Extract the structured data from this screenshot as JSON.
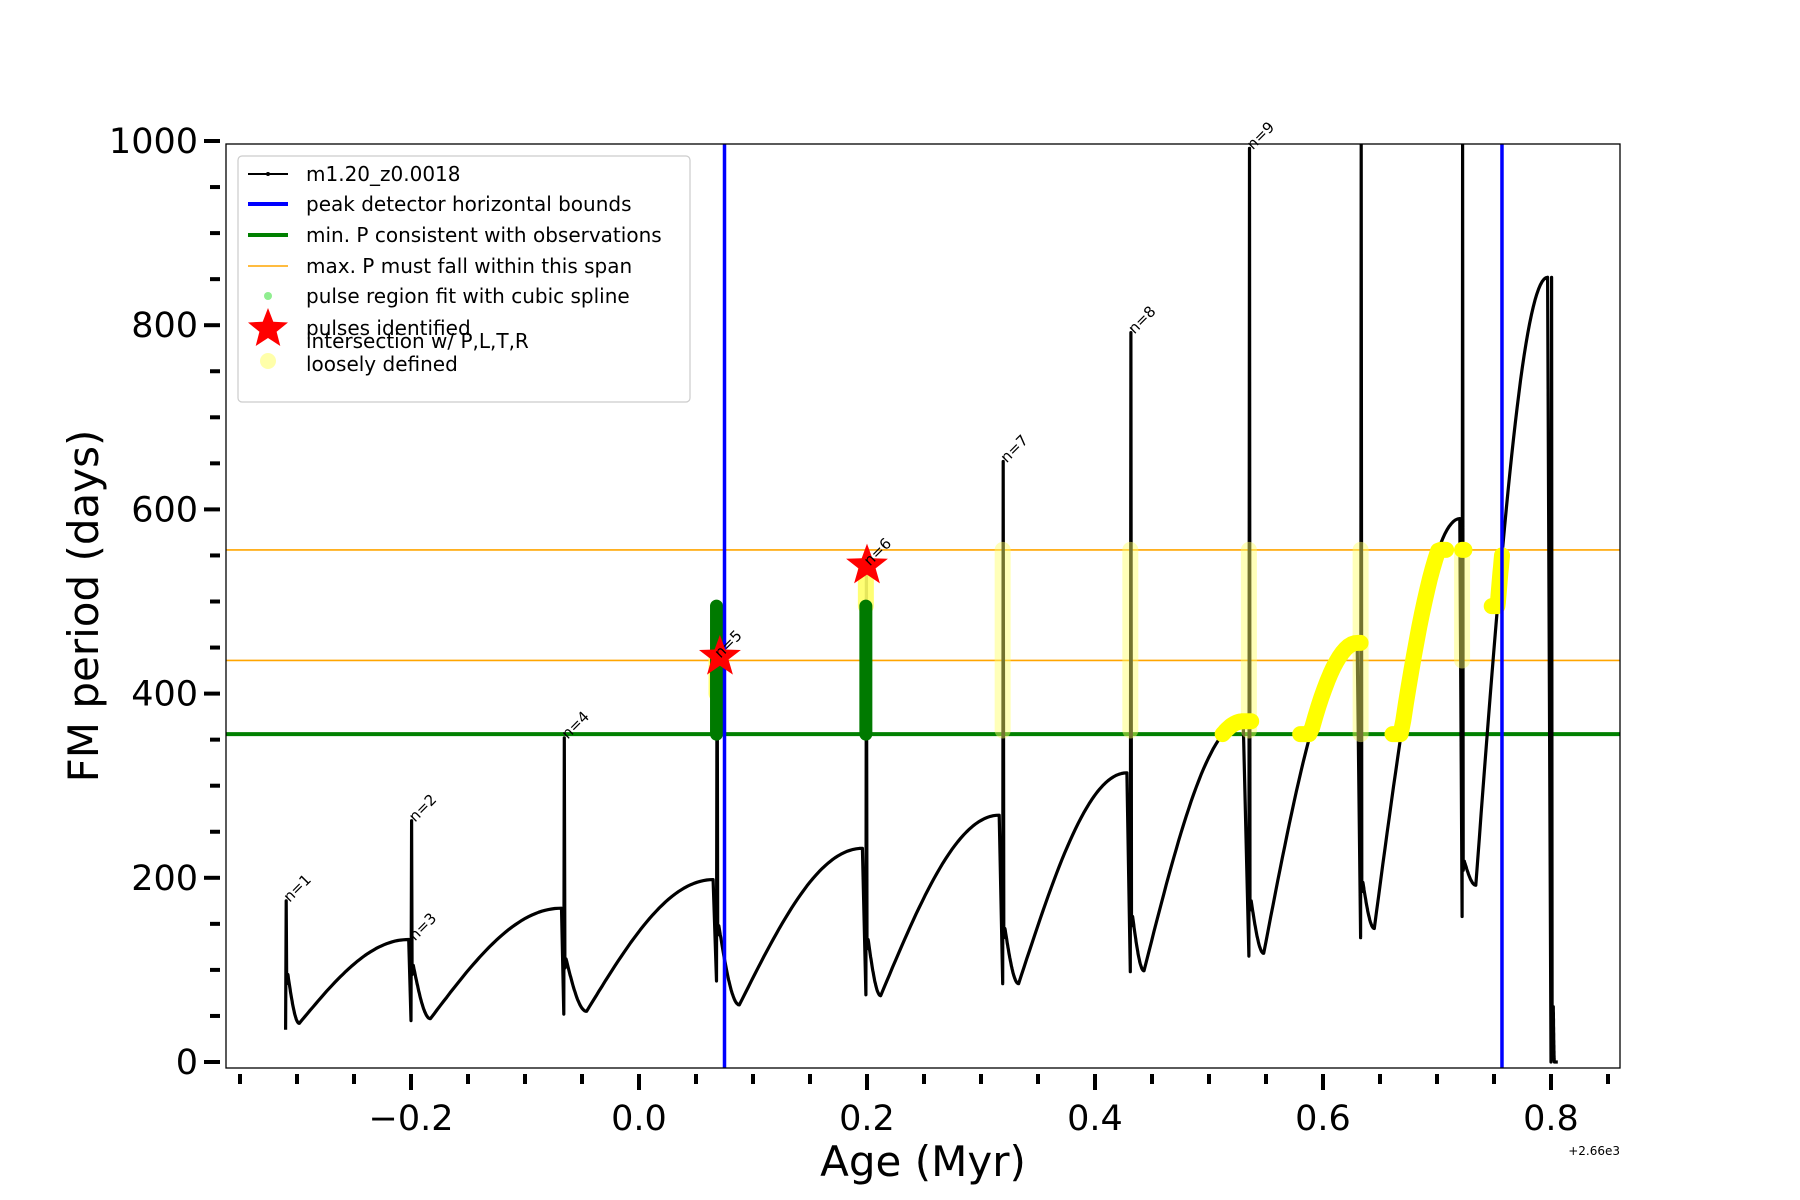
{
  "chart_data": {
    "type": "line",
    "title": "",
    "xlabel": "Age (Myr)",
    "ylabel": "FM period (days)",
    "x_offset_label": "+2.66e3",
    "xlim": [
      -0.362,
      0.86
    ],
    "ylim": [
      -5,
      1000
    ],
    "xticks": [
      -0.2,
      0.0,
      0.2,
      0.4,
      0.6,
      0.8
    ],
    "xtick_labels": [
      "−0.2",
      "0.0",
      "0.2",
      "0.4",
      "0.6",
      "0.8"
    ],
    "x_minor_step": 0.05,
    "yticks": [
      0,
      200,
      400,
      600,
      800,
      1000
    ],
    "ytick_labels": [
      "0",
      "200",
      "400",
      "600",
      "800",
      "1000"
    ],
    "y_minor_step": 50,
    "grid": false,
    "legend_position": "top-left",
    "legend": [
      {
        "label": "m1.20_z0.0018",
        "kind": "line-marker",
        "color": "#000000"
      },
      {
        "label": "peak detector horizontal bounds",
        "kind": "line",
        "color": "#0000ff"
      },
      {
        "label": "min. P consistent with observations",
        "kind": "line",
        "color": "#008000"
      },
      {
        "label": "max. P must fall within this span",
        "kind": "thin-line",
        "color": "#ffa500"
      },
      {
        "label": "pulse region fit with cubic spline",
        "kind": "dot",
        "color": "#90ee90"
      },
      {
        "label": "pulses identified",
        "kind": "star",
        "color": "#ff0000"
      },
      {
        "label": "intersection w/ P,L,T,R\nloosely defined",
        "kind": "dot",
        "color": "#ffffaa"
      }
    ],
    "series_main": {
      "name": "m1.20_z0.0018",
      "color": "#000000",
      "cycles": [
        {
          "pulse_x": -0.31,
          "spike": 175,
          "spike_low": 35,
          "trough_x": -0.298,
          "trough": 42,
          "end_x": -0.202,
          "end": 133
        },
        {
          "pulse_x": -0.2,
          "spike": 262,
          "spike_low": 45,
          "trough_x": -0.183,
          "trough": 47,
          "end_x": -0.068,
          "end": 167
        },
        {
          "pulse_x": -0.066,
          "spike": 352,
          "spike_low": 52,
          "trough_x": -0.046,
          "trough": 55,
          "end_x": 0.065,
          "end": 198
        },
        {
          "pulse_x": 0.068,
          "spike": 495,
          "spike_low": 88,
          "trough_x": 0.088,
          "trough": 62,
          "end_x": 0.196,
          "end": 232
        },
        {
          "pulse_x": 0.199,
          "spike": 540,
          "spike_low": 73,
          "trough_x": 0.212,
          "trough": 72,
          "end_x": 0.316,
          "end": 268
        },
        {
          "pulse_x": 0.319,
          "spike": 652,
          "spike_low": 85,
          "trough_x": 0.333,
          "trough": 85,
          "end_x": 0.428,
          "end": 314
        },
        {
          "pulse_x": 0.431,
          "spike": 792,
          "spike_low": 98,
          "trough_x": 0.443,
          "trough": 99,
          "end_x": 0.53,
          "end": 370
        },
        {
          "pulse_x": 0.535,
          "spike": 992,
          "spike_low": 115,
          "trough_x": 0.548,
          "trough": 118,
          "end_x": 0.63,
          "end": 455
        },
        {
          "pulse_x": 0.633,
          "spike": 1000,
          "spike_low": 135,
          "trough_x": 0.645,
          "trough": 145,
          "end_x": 0.72,
          "end": 590
        },
        {
          "pulse_x": 0.722,
          "spike": 1000,
          "spike_low": 158,
          "trough_x": 0.734,
          "trough": 192,
          "end_x": 0.797,
          "end": 852
        },
        {
          "pulse_x": 0.8,
          "spike": 852,
          "spike_low": 0,
          "trough_x": 0.803,
          "trough": 0,
          "end_x": 0.806,
          "end": 0
        }
      ]
    },
    "peak_detector_bounds_x": [
      0.075,
      0.757
    ],
    "min_P": 356,
    "max_P_span": [
      436,
      556
    ],
    "cubic_spline_regions": [
      {
        "x": 0.068,
        "y_range": [
          356,
          495
        ]
      },
      {
        "x": 0.199,
        "y_range": [
          356,
          495
        ]
      }
    ],
    "pulses_identified": [
      {
        "x": 0.071,
        "y": 440,
        "n": 5
      },
      {
        "x": 0.2,
        "y": 539,
        "n": 6
      }
    ],
    "loose_intersections": [
      {
        "x": 0.068,
        "y_range": [
          400,
          440
        ]
      },
      {
        "x": 0.199,
        "y_range": [
          495,
          540
        ]
      },
      {
        "x": 0.319,
        "y_range": [
          360,
          556
        ],
        "style": "faint"
      },
      {
        "x": 0.431,
        "y_range": [
          360,
          556
        ],
        "style": "faint"
      },
      {
        "x": 0.535,
        "y_range": [
          360,
          556
        ],
        "style": "faint"
      },
      {
        "x": 0.633,
        "y_range": [
          356,
          556
        ],
        "style": "faint"
      },
      {
        "x": 0.722,
        "y_range": [
          436,
          556
        ],
        "style": "faint"
      },
      {
        "curve_from_x": 0.512,
        "curve_to_x": 0.537,
        "y_range": [
          356,
          372
        ],
        "style": "solid"
      },
      {
        "curve_from_x": 0.58,
        "curve_to_x": 0.633,
        "y_range": [
          356,
          455
        ],
        "style": "solid"
      },
      {
        "curve_from_x": 0.661,
        "curve_to_x": 0.708,
        "y_range": [
          356,
          556
        ],
        "style": "solid"
      },
      {
        "curve_from_x": 0.722,
        "curve_to_x": 0.724,
        "y_range": [
          436,
          556
        ],
        "style": "solid"
      },
      {
        "curve_from_x": 0.748,
        "curve_to_x": 0.757,
        "y_range": [
          495,
          556
        ],
        "style": "solid"
      }
    ],
    "annotations": [
      {
        "text": "n=1",
        "x": -0.31,
        "y": 175
      },
      {
        "text": "n=2",
        "x": -0.2,
        "y": 262
      },
      {
        "text": "n=3",
        "x": -0.2,
        "y": 133
      },
      {
        "text": "n=4",
        "x": -0.066,
        "y": 352
      },
      {
        "text": "n=5",
        "x": 0.068,
        "y": 440
      },
      {
        "text": "n=6",
        "x": 0.199,
        "y": 540
      },
      {
        "text": "n=7",
        "x": 0.319,
        "y": 652
      },
      {
        "text": "n=8",
        "x": 0.431,
        "y": 792
      },
      {
        "text": "n=9",
        "x": 0.535,
        "y": 992
      }
    ]
  }
}
